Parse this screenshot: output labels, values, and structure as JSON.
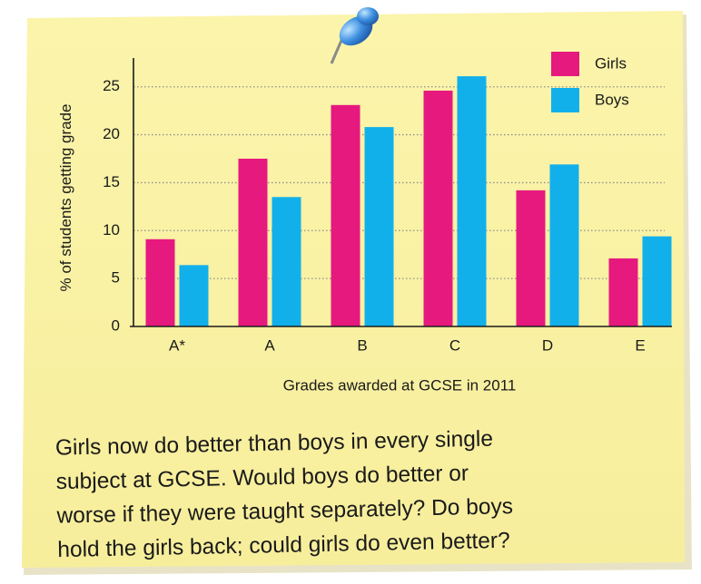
{
  "chart_data": {
    "type": "bar",
    "ylabel": "% of students getting grade",
    "xlabel": "Grades awarded at GCSE in 2011",
    "categories": [
      "A*",
      "A",
      "B",
      "C",
      "D",
      "E"
    ],
    "series": [
      {
        "name": "Girls",
        "color": "#e6197f",
        "values": [
          9.1,
          17.5,
          23.1,
          24.6,
          14.2,
          7.1
        ]
      },
      {
        "name": "Boys",
        "color": "#12b0ea",
        "values": [
          6.4,
          13.5,
          20.8,
          26.1,
          16.9,
          9.4
        ]
      }
    ],
    "ylim": [
      0,
      28
    ],
    "yticks": [
      0,
      5,
      10,
      15,
      20,
      25
    ],
    "grid": true,
    "legend": "top-right"
  },
  "note": {
    "lines": [
      "Girls now do better than boys in every single",
      "subject at GCSE. Would boys do better or",
      "worse if they were taught separately? Do boys",
      "hold the girls back; could girls do even better?"
    ]
  }
}
